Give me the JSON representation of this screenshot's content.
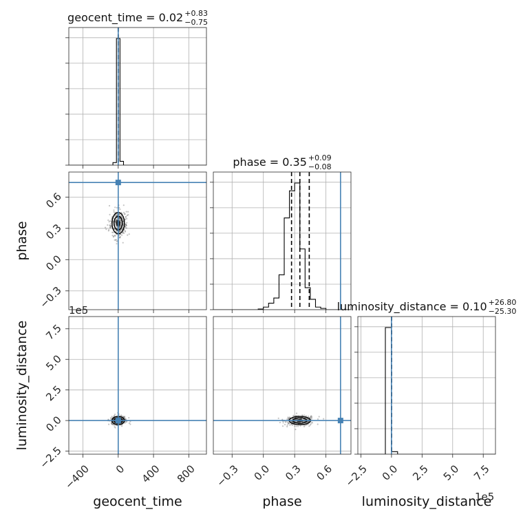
{
  "chart_data": {
    "type": "corner",
    "parameters": [
      {
        "name": "geocent_time",
        "label": "geocent_time",
        "range": [
          -560,
          1000
        ],
        "ticks": [
          -400,
          0,
          400,
          800
        ],
        "tick_labels": [
          "−400",
          "0",
          "400",
          "800"
        ],
        "median": 0.02,
        "plus": 0.83,
        "minus": 0.75,
        "title": {
          "main": "geocent_time = 0.02",
          "sup": "+0.83",
          "sub": "−0.75"
        },
        "truth": 0.0,
        "histogram": {
          "bin_edges": [
            -60,
            -20,
            20,
            60
          ],
          "counts": [
            0.02,
            1.0,
            0.03
          ]
        },
        "quantiles": [
          -0.73,
          0.02,
          0.85
        ]
      },
      {
        "name": "phase",
        "label": "phase",
        "range": [
          -0.48,
          0.84
        ],
        "ticks": [
          -0.3,
          0.0,
          0.3,
          0.6
        ],
        "tick_labels": [
          "−0.3",
          "0.0",
          "0.3",
          "0.6"
        ],
        "median": 0.35,
        "plus": 0.09,
        "minus": 0.08,
        "title": {
          "main": "phase = 0.35",
          "sup": "+0.09",
          "sub": "−0.08"
        },
        "truth": 0.74,
        "histogram": {
          "bin_edges": [
            -0.05,
            0.0,
            0.05,
            0.1,
            0.15,
            0.2,
            0.25,
            0.3,
            0.35,
            0.4,
            0.45,
            0.5,
            0.55,
            0.6,
            0.65
          ],
          "counts": [
            0.005,
            0.02,
            0.05,
            0.09,
            0.27,
            0.71,
            0.92,
            0.98,
            0.47,
            0.17,
            0.08,
            0.02,
            0.01,
            0.0
          ]
        },
        "quantiles": [
          0.27,
          0.35,
          0.44
        ]
      },
      {
        "name": "luminosity_distance",
        "label": "luminosity_distance",
        "range": [
          -275000,
          850000
        ],
        "ticks": [
          -250000,
          0,
          250000,
          500000,
          750000
        ],
        "tick_labels": [
          "−2.5",
          "0.0",
          "2.5",
          "5.0",
          "7.5"
        ],
        "offset_text": "1e5",
        "median": 0.1,
        "plus": 26.8,
        "minus": 25.3,
        "title": {
          "main": "luminosity_distance = 0.10",
          "sup": "+26.80",
          "sub": "−25.30"
        },
        "truth": 0.0,
        "histogram": {
          "bin_edges": [
            -50000,
            0,
            50000
          ],
          "counts": [
            1.0,
            0.02
          ]
        },
        "quantiles": [
          -25.2,
          0.1,
          26.9
        ]
      }
    ],
    "scatter": {
      "center": {
        "geocent_time": 0,
        "phase": 0.35,
        "luminosity_distance": 0
      },
      "spread": {
        "geocent_time": 40,
        "phase": 0.06,
        "luminosity_distance": 15000
      }
    }
  }
}
